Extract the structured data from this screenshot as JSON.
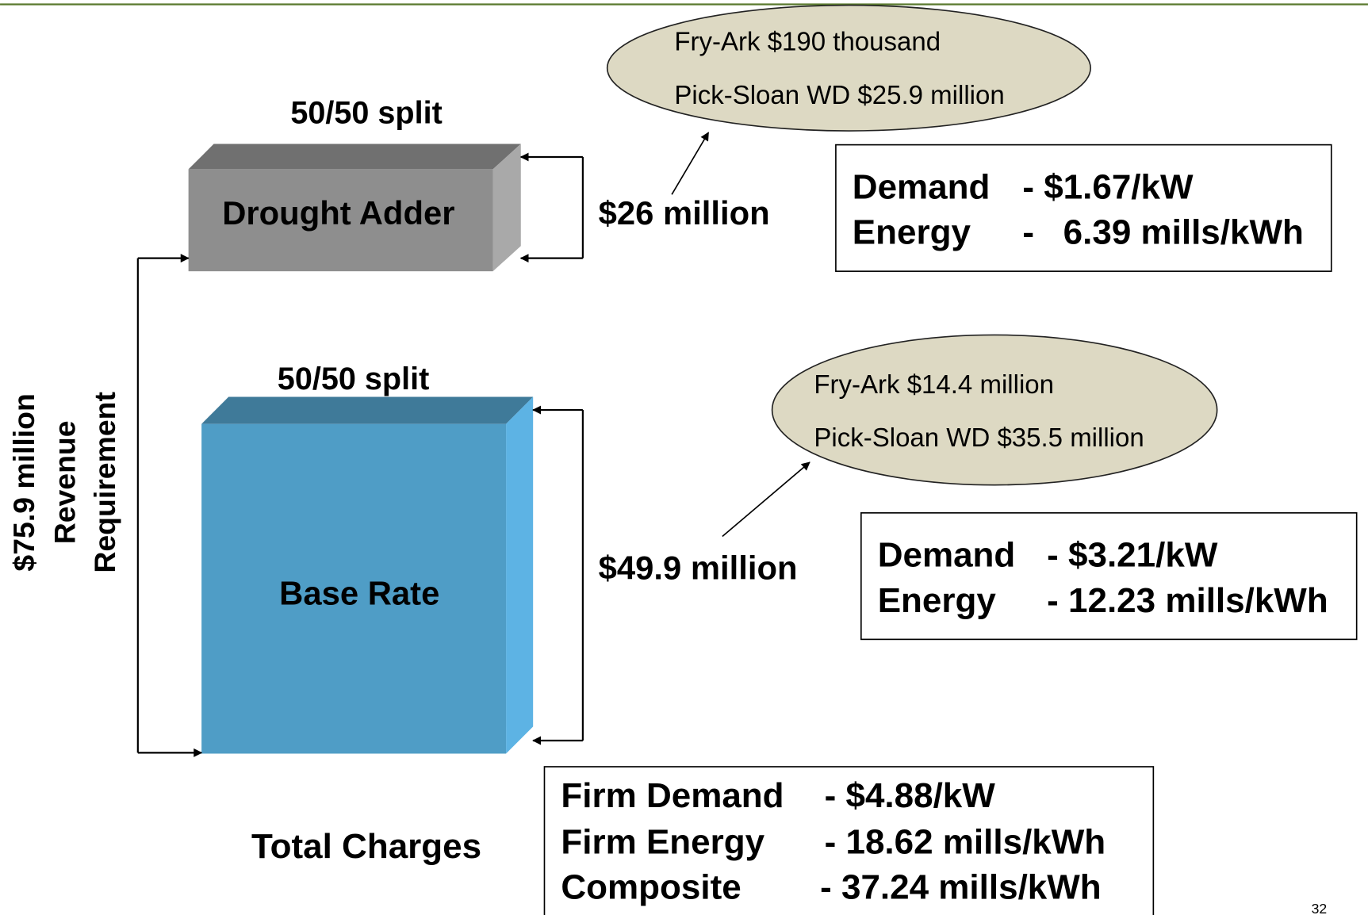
{
  "side_label": [
    "$75.9 million",
    "Revenue",
    "Requirement"
  ],
  "drought": {
    "split": "50/50 split",
    "box": "Drought Adder",
    "amount": "$26 million",
    "ellipse": [
      "Fry-Ark $190 thousand",
      "Pick-Sloan WD $25.9 million"
    ],
    "rates": [
      {
        "label": "Demand",
        "value": "- $1.67/kW"
      },
      {
        "label": "Energy",
        "value": "-   6.39 mills/kWh"
      }
    ]
  },
  "base": {
    "split": "50/50 split",
    "box": "Base Rate",
    "amount": "$49.9 million",
    "ellipse": [
      "Fry-Ark $14.4 million",
      "Pick-Sloan WD $35.5 million"
    ],
    "rates": [
      {
        "label": "Demand",
        "value": "- $3.21/kW"
      },
      {
        "label": "Energy",
        "value": "- 12.23 mills/kWh"
      }
    ]
  },
  "total": {
    "label": "Total Charges",
    "rows": [
      {
        "label": "Firm Demand",
        "value": "- $4.88/kW"
      },
      {
        "label": "Firm Energy",
        "value": "- 18.62 mills/kWh"
      },
      {
        "label": "Composite",
        "value": "- 37.24 mills/kWh"
      }
    ]
  },
  "page_number": "32"
}
